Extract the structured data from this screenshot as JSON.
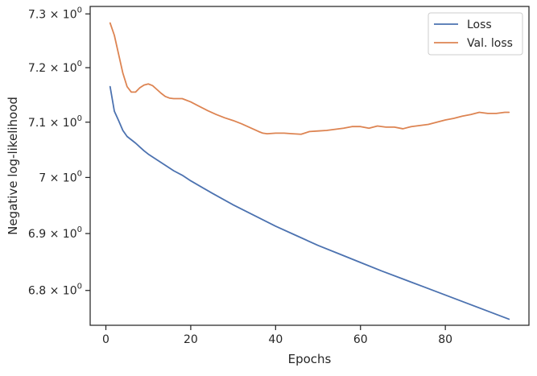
{
  "chart_data": {
    "type": "line",
    "xlabel": "Epochs",
    "ylabel": "Negative log-likelihood",
    "y_scale": "log",
    "xlim": [
      -3.7,
      99.7
    ],
    "ylim": [
      6.7395,
      7.314
    ],
    "x_ticks": [
      0,
      20,
      40,
      60,
      80
    ],
    "x_tick_labels": [
      "0",
      "20",
      "40",
      "60",
      "80"
    ],
    "y_ticks": [
      6.8,
      6.9,
      7.0,
      7.1,
      7.2,
      7.3
    ],
    "y_tick_labels": [
      {
        "base": "6.8",
        "exp": "0"
      },
      {
        "base": "6.9",
        "exp": "0"
      },
      {
        "base": "7",
        "exp": "0"
      },
      {
        "base": "7.1",
        "exp": "0"
      },
      {
        "base": "7.2",
        "exp": "0"
      },
      {
        "base": "7.3",
        "exp": "0"
      }
    ],
    "grid": false,
    "legend_position": "top-right",
    "series": [
      {
        "name": "Loss",
        "color": "#4c72b0",
        "x": [
          1,
          2,
          3,
          4,
          5,
          6,
          7,
          8,
          9,
          10,
          12,
          14,
          16,
          18,
          20,
          25,
          30,
          35,
          40,
          45,
          50,
          55,
          60,
          65,
          70,
          75,
          80,
          85,
          90,
          95
        ],
        "y": [
          7.165,
          7.12,
          7.103,
          7.085,
          7.074,
          7.068,
          7.062,
          7.055,
          7.048,
          7.042,
          7.032,
          7.022,
          7.012,
          7.004,
          6.994,
          6.972,
          6.951,
          6.932,
          6.913,
          6.896,
          6.879,
          6.864,
          6.849,
          6.834,
          6.82,
          6.806,
          6.792,
          6.778,
          6.764,
          6.75
        ]
      },
      {
        "name": "Val. loss",
        "color": "#dd8452",
        "x": [
          1,
          2,
          3,
          4,
          5,
          6,
          7,
          8,
          9,
          10,
          11,
          12,
          13,
          14,
          15,
          16,
          17,
          18,
          20,
          22,
          24,
          26,
          28,
          30,
          32,
          34,
          36,
          37,
          38,
          40,
          42,
          44,
          46,
          48,
          50,
          52,
          54,
          56,
          58,
          60,
          62,
          64,
          66,
          68,
          70,
          72,
          74,
          76,
          78,
          80,
          82,
          84,
          86,
          88,
          90,
          92,
          94,
          95
        ],
        "y": [
          7.283,
          7.26,
          7.225,
          7.19,
          7.165,
          7.155,
          7.155,
          7.163,
          7.168,
          7.17,
          7.167,
          7.16,
          7.153,
          7.147,
          7.144,
          7.143,
          7.143,
          7.143,
          7.137,
          7.129,
          7.121,
          7.114,
          7.108,
          7.103,
          7.097,
          7.09,
          7.083,
          7.08,
          7.079,
          7.08,
          7.08,
          7.079,
          7.078,
          7.083,
          7.084,
          7.085,
          7.087,
          7.089,
          7.092,
          7.092,
          7.089,
          7.093,
          7.091,
          7.091,
          7.088,
          7.092,
          7.094,
          7.096,
          7.1,
          7.104,
          7.107,
          7.111,
          7.114,
          7.118,
          7.116,
          7.116,
          7.118,
          7.118
        ]
      }
    ]
  }
}
